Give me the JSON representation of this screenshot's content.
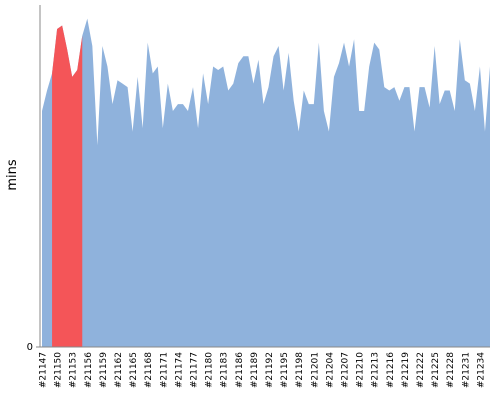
{
  "chart_data": {
    "type": "area",
    "y_label": "mins",
    "categories": [
      "#21147",
      null,
      null,
      "#21150",
      null,
      null,
      "#21153",
      null,
      null,
      "#21156",
      null,
      null,
      "#21159",
      null,
      null,
      "#21162",
      null,
      null,
      "#21165",
      null,
      null,
      "#21168",
      null,
      null,
      "#21171",
      null,
      null,
      "#21174",
      null,
      null,
      "#21177",
      null,
      null,
      "#21180",
      null,
      null,
      "#21183",
      null,
      null,
      "#21186",
      null,
      null,
      "#21189",
      null,
      null,
      "#21192",
      null,
      null,
      "#21195",
      null,
      null,
      "#21198",
      null,
      null,
      "#21201",
      null,
      null,
      "#21204",
      null,
      null,
      "#21207",
      null,
      null,
      "#21210",
      null,
      null,
      "#21213",
      null,
      null,
      "#21216",
      null,
      null,
      "#21219",
      null,
      null,
      "#21222",
      null,
      null,
      "#21225",
      null,
      null,
      "#21228",
      null,
      null,
      "#21231",
      null,
      null,
      "#21234",
      null,
      null
    ],
    "series": [
      {
        "color": "#8fb2dc",
        "values": [
          69,
          75,
          80,
          93,
          94,
          87,
          79,
          81,
          91,
          96,
          88,
          59,
          88,
          82,
          71,
          78,
          77,
          76,
          63,
          79,
          64,
          89,
          80,
          82,
          64,
          77,
          69,
          71,
          71,
          69,
          76,
          64,
          80,
          71,
          82,
          81,
          82,
          75,
          77,
          83,
          85,
          85,
          77,
          84,
          71,
          76,
          85,
          88,
          75,
          86,
          72,
          63,
          75,
          71,
          71,
          89,
          69,
          63,
          79,
          83,
          89,
          82,
          90,
          69,
          69,
          82,
          89,
          87,
          76,
          75,
          76,
          72,
          76,
          76,
          63,
          76,
          76,
          70,
          88,
          71,
          75,
          75,
          69,
          90,
          78,
          77,
          69,
          82,
          63,
          82
        ]
      },
      {
        "color": "#f45558",
        "values": [
          null,
          null,
          80,
          93,
          94,
          87,
          79,
          81,
          91,
          null,
          null,
          null,
          null,
          null,
          null,
          null,
          null,
          null,
          null,
          null,
          null,
          null,
          null,
          null,
          null,
          null,
          null,
          null,
          null,
          null,
          null,
          null,
          null,
          null,
          null,
          null,
          null,
          null,
          null,
          null,
          null,
          null,
          null,
          null,
          null,
          null,
          null,
          null,
          null,
          null,
          null,
          null,
          null,
          null,
          null,
          null,
          null,
          null,
          null,
          null,
          null,
          null,
          null,
          null,
          null,
          null,
          null,
          null,
          null,
          null,
          null,
          null,
          null,
          null,
          null,
          null,
          null,
          null,
          null,
          null,
          null,
          null,
          null,
          null,
          null,
          null,
          null,
          null,
          null,
          null
        ]
      }
    ],
    "ylim": [
      0,
      100
    ],
    "yticks": [
      0
    ]
  }
}
